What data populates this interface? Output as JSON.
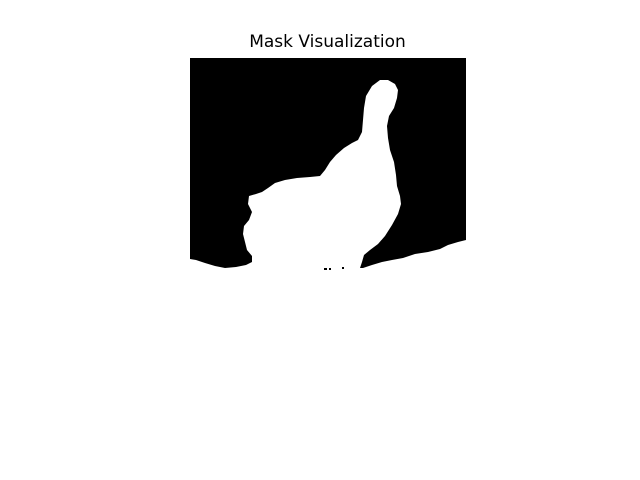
{
  "figure": {
    "title": "Mask Visualization"
  },
  "colors": {
    "background": "#ffffff",
    "mask_background": "#000000",
    "mask_foreground": "#ffffff"
  }
}
